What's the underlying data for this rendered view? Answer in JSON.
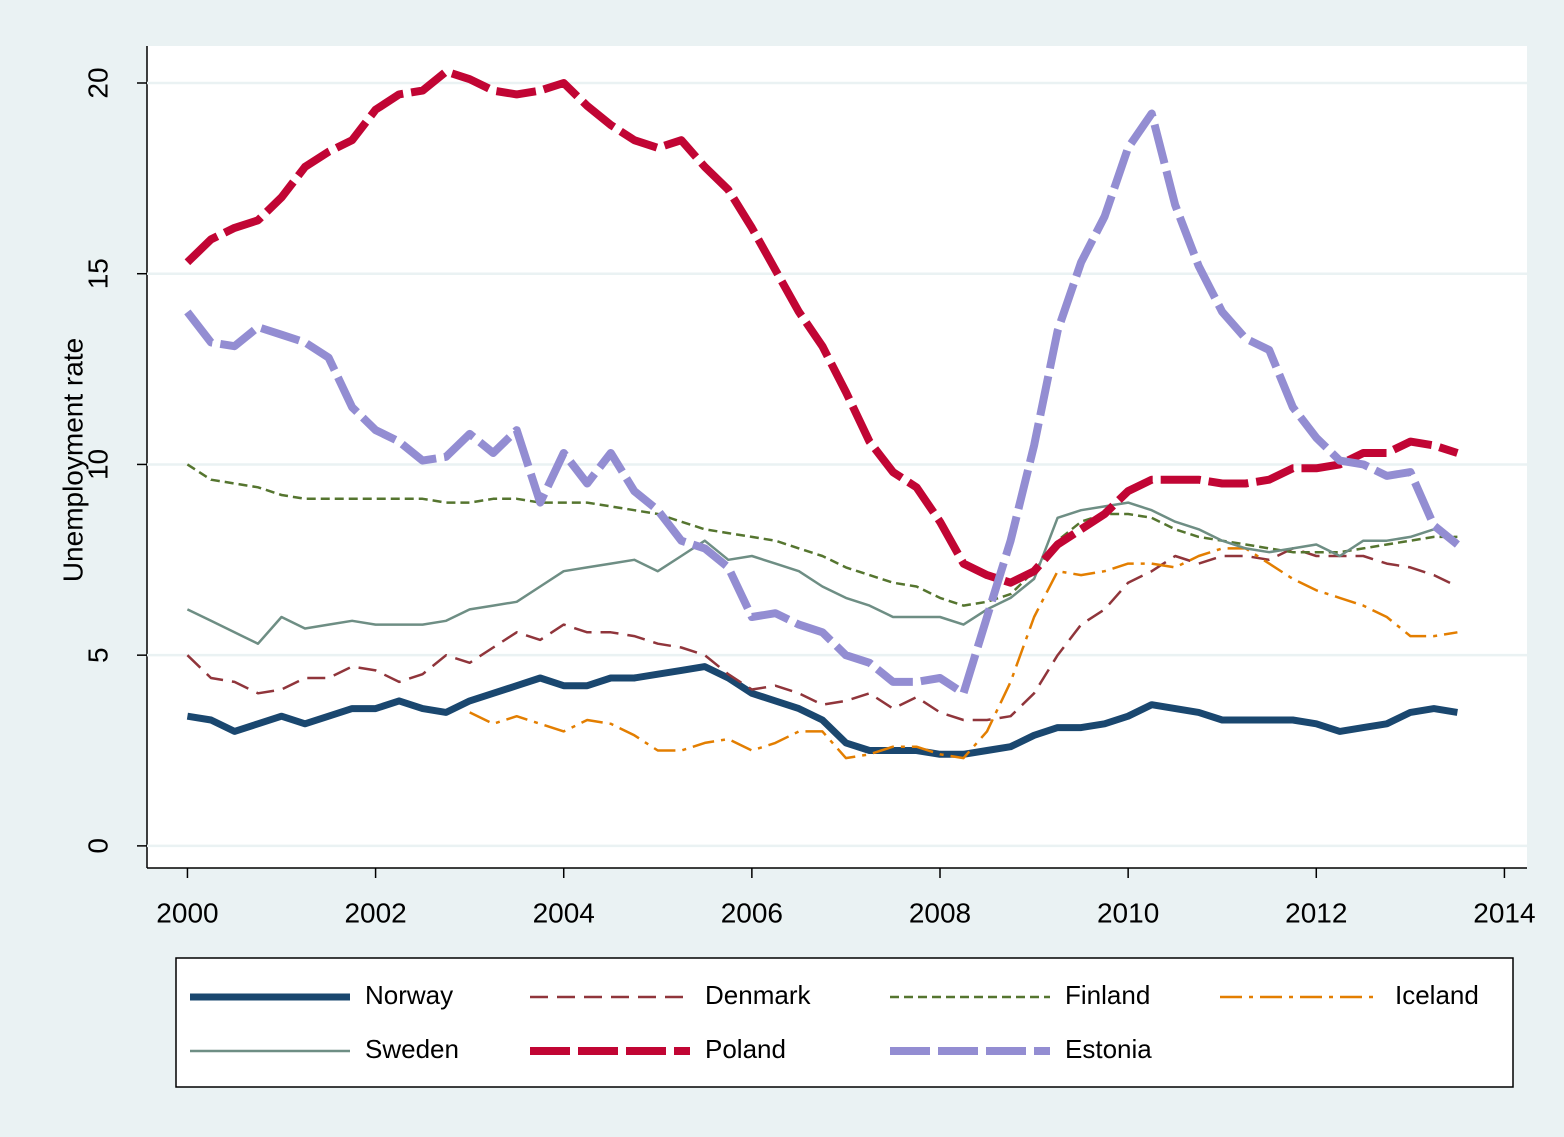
{
  "chart_data": {
    "type": "line",
    "y_label": "Unemployment rate",
    "x": [
      2000,
      2000.25,
      2000.5,
      2000.75,
      2001,
      2001.25,
      2001.5,
      2001.75,
      2002,
      2002.25,
      2002.5,
      2002.75,
      2003,
      2003.25,
      2003.5,
      2003.75,
      2004,
      2004.25,
      2004.5,
      2004.75,
      2005,
      2005.25,
      2005.5,
      2005.75,
      2006,
      2006.25,
      2006.5,
      2006.75,
      2007,
      2007.25,
      2007.5,
      2007.75,
      2008,
      2008.25,
      2008.5,
      2008.75,
      2009,
      2009.25,
      2009.5,
      2009.75,
      2010,
      2010.25,
      2010.5,
      2010.75,
      2011,
      2011.25,
      2011.5,
      2011.75,
      2012,
      2012.25,
      2012.5,
      2012.75,
      2013,
      2013.25,
      2013.5
    ],
    "xlim": [
      1999.57,
      2014.24
    ],
    "xticks": [
      2000,
      2002,
      2004,
      2006,
      2008,
      2010,
      2012,
      2014
    ],
    "ylim": [
      -0.58,
      20.97
    ],
    "yticks": [
      0,
      5,
      10,
      15,
      20
    ],
    "grid": true,
    "series": [
      {
        "name": "Norway",
        "color": "#1a476f",
        "values": [
          3.4,
          3.3,
          3.0,
          3.2,
          3.4,
          3.2,
          3.4,
          3.6,
          3.6,
          3.8,
          3.6,
          3.5,
          3.8,
          4.0,
          4.2,
          4.4,
          4.2,
          4.2,
          4.4,
          4.4,
          4.5,
          4.6,
          4.7,
          4.4,
          4.0,
          3.8,
          3.6,
          3.3,
          2.7,
          2.5,
          2.5,
          2.5,
          2.4,
          2.4,
          2.5,
          2.6,
          2.9,
          3.1,
          3.1,
          3.2,
          3.4,
          3.7,
          3.6,
          3.5,
          3.3,
          3.3,
          3.3,
          3.3,
          3.2,
          3.0,
          3.1,
          3.2,
          3.5,
          3.6,
          3.5
        ]
      },
      {
        "name": "Denmark",
        "color": "#90353b",
        "values": [
          5.0,
          4.4,
          4.3,
          4.0,
          4.1,
          4.4,
          4.4,
          4.7,
          4.6,
          4.3,
          4.5,
          5.0,
          4.8,
          5.2,
          5.6,
          5.4,
          5.8,
          5.6,
          5.6,
          5.5,
          5.3,
          5.2,
          5.0,
          4.5,
          4.1,
          4.2,
          4.0,
          3.7,
          3.8,
          4.0,
          3.6,
          3.9,
          3.5,
          3.3,
          3.3,
          3.4,
          4.0,
          5.0,
          5.8,
          6.2,
          6.9,
          7.2,
          7.6,
          7.4,
          7.6,
          7.6,
          7.5,
          7.8,
          7.6,
          7.6,
          7.6,
          7.4,
          7.3,
          7.1,
          6.8
        ]
      },
      {
        "name": "Finland",
        "color": "#55752f",
        "values": [
          10.0,
          9.6,
          9.5,
          9.4,
          9.2,
          9.1,
          9.1,
          9.1,
          9.1,
          9.1,
          9.1,
          9.0,
          9.0,
          9.1,
          9.1,
          9.0,
          9.0,
          9.0,
          8.9,
          8.8,
          8.7,
          8.5,
          8.3,
          8.2,
          8.1,
          8.0,
          7.8,
          7.6,
          7.3,
          7.1,
          6.9,
          6.8,
          6.5,
          6.3,
          6.4,
          6.6,
          7.2,
          8.0,
          8.5,
          8.7,
          8.7,
          8.6,
          8.3,
          8.1,
          8.0,
          7.9,
          7.8,
          7.7,
          7.7,
          7.7,
          7.8,
          7.9,
          8.0,
          8.1,
          8.1
        ]
      },
      {
        "name": "Iceland",
        "color": "#e37e00",
        "values": [
          null,
          null,
          null,
          null,
          null,
          null,
          null,
          null,
          null,
          null,
          null,
          null,
          3.5,
          3.2,
          3.4,
          3.2,
          3.0,
          3.3,
          3.2,
          2.9,
          2.5,
          2.5,
          2.7,
          2.8,
          2.5,
          2.7,
          3.0,
          3.0,
          2.3,
          2.4,
          2.6,
          2.6,
          2.4,
          2.3,
          3.0,
          4.3,
          6.0,
          7.2,
          7.1,
          7.2,
          7.4,
          7.4,
          7.3,
          7.6,
          7.8,
          7.8,
          7.4,
          7.0,
          6.7,
          6.5,
          6.3,
          6.0,
          5.5,
          5.5,
          5.6
        ]
      },
      {
        "name": "Sweden",
        "color": "#6e8e84",
        "values": [
          6.2,
          5.9,
          5.6,
          5.3,
          6.0,
          5.7,
          5.8,
          5.9,
          5.8,
          5.8,
          5.8,
          5.9,
          6.2,
          6.3,
          6.4,
          6.8,
          7.2,
          7.3,
          7.4,
          7.5,
          7.2,
          7.6,
          8.0,
          7.5,
          7.6,
          7.4,
          7.2,
          6.8,
          6.5,
          6.3,
          6.0,
          6.0,
          6.0,
          5.8,
          6.2,
          6.5,
          7.0,
          8.6,
          8.8,
          8.9,
          9.0,
          8.8,
          8.5,
          8.3,
          8.0,
          7.8,
          7.7,
          7.8,
          7.9,
          7.6,
          8.0,
          8.0,
          8.1,
          8.3,
          8.0
        ]
      },
      {
        "name": "Poland",
        "color": "#c10534",
        "values": [
          15.3,
          15.9,
          16.2,
          16.4,
          17.0,
          17.8,
          18.2,
          18.5,
          19.3,
          19.7,
          19.8,
          20.3,
          20.1,
          19.8,
          19.7,
          19.8,
          20.0,
          19.4,
          18.9,
          18.5,
          18.3,
          18.5,
          17.8,
          17.2,
          16.2,
          15.1,
          14.0,
          13.1,
          11.9,
          10.6,
          9.8,
          9.4,
          8.5,
          7.4,
          7.1,
          6.9,
          7.2,
          7.9,
          8.3,
          8.7,
          9.3,
          9.6,
          9.6,
          9.6,
          9.5,
          9.5,
          9.6,
          9.9,
          9.9,
          10.0,
          10.3,
          10.3,
          10.6,
          10.5,
          10.3
        ]
      },
      {
        "name": "Estonia",
        "color": "#938dd2",
        "values": [
          14.0,
          13.2,
          13.1,
          13.6,
          13.4,
          13.2,
          12.8,
          11.5,
          10.9,
          10.6,
          10.1,
          10.2,
          10.8,
          10.3,
          10.9,
          9.0,
          10.3,
          9.5,
          10.3,
          9.3,
          8.8,
          8.0,
          7.8,
          7.3,
          6.0,
          6.1,
          5.8,
          5.6,
          5.0,
          4.8,
          4.3,
          4.3,
          4.4,
          4.0,
          6.0,
          8.0,
          10.5,
          13.5,
          15.3,
          16.5,
          18.3,
          19.2,
          16.8,
          15.2,
          14.0,
          13.3,
          13.0,
          11.5,
          10.7,
          10.1,
          10.0,
          9.7,
          9.8,
          8.4,
          7.9
        ]
      }
    ]
  }
}
